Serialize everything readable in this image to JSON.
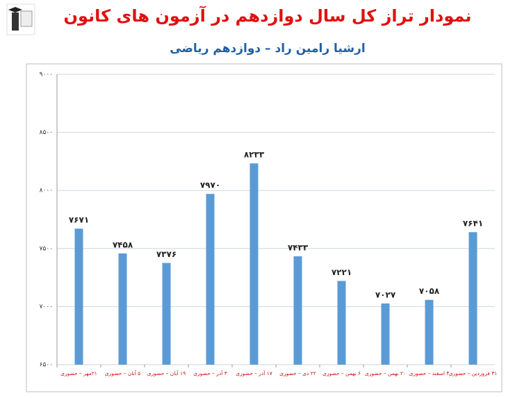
{
  "chart_data": {
    "type": "bar",
    "title": "نمودار تراز کل سال دوازدهم در آزمون های کانون",
    "subtitle": "ارشیا رامین راد – دوازدهم ریاضی",
    "categories": [
      "۲۱مهر – حضوری",
      "۵ آبان – حضوری",
      "۱۹ آبان – حضوری",
      "۳ آذر – حضوری",
      "۱۷ آذر – حضوری",
      "۲۲ دی – حضوری",
      "۶ بهمن – حضوری",
      "۲۰ بهمن – حضوری",
      "۴ اسفند – حضوری",
      "۳۱ فروردین – حضوری"
    ],
    "values": [
      7671,
      7458,
      7376,
      7970,
      8233,
      7433,
      7221,
      7027,
      7058,
      7641
    ],
    "value_labels": [
      "۷۶۷۱",
      "۷۴۵۸",
      "۷۳۷۶",
      "۷۹۷۰",
      "۸۲۳۳",
      "۷۴۳۳",
      "۷۲۲۱",
      "۷۰۲۷",
      "۷۰۵۸",
      "۷۶۴۱"
    ],
    "color": "#5b9bd5",
    "ylim": [
      6500,
      9000
    ],
    "yticks": [
      {
        "value": 6500,
        "label": "۶۵۰۰"
      },
      {
        "value": 7000,
        "label": "۷۰۰۰"
      },
      {
        "value": 7500,
        "label": "۷۵۰۰"
      },
      {
        "value": 8000,
        "label": "۸۰۰۰"
      },
      {
        "value": 8500,
        "label": "۸۵۰۰"
      },
      {
        "value": 9000,
        "label": "۹۰۰۰"
      }
    ],
    "grid": true
  }
}
